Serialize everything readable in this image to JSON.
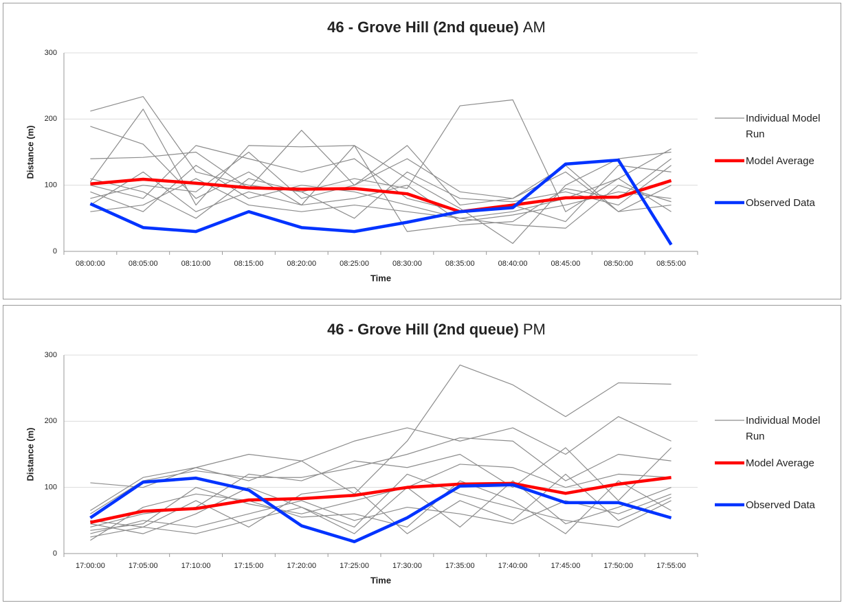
{
  "chart_data": [
    {
      "type": "line",
      "title": [
        "46 - Grove Hill (2nd queue)",
        "AM"
      ],
      "x_label": "Time",
      "y_label": "Distance (m)",
      "categories": [
        "08:00:00",
        "08:05:00",
        "08:10:00",
        "08:15:00",
        "08:20:00",
        "08:25:00",
        "08:30:00",
        "08:35:00",
        "08:40:00",
        "08:45:00",
        "08:50:00",
        "08:55:00"
      ],
      "ylim": [
        0,
        300
      ],
      "yticks": [
        0,
        100,
        200,
        300
      ],
      "grid": true,
      "series": [
        {
          "name": "Individual Model Run",
          "color": "#8c8c8c",
          "runs": [
            [
              212,
              234,
              120,
              100,
              90,
              110,
              95,
              220,
              229,
              60,
              110,
              155
            ],
            [
              189,
              162,
              80,
              120,
              70,
              160,
              110,
              65,
              12,
              100,
              140,
              150
            ],
            [
              140,
              142,
              150,
              95,
              183,
              100,
              160,
              70,
              80,
              120,
              60,
              70
            ],
            [
              105,
              215,
              70,
              160,
              158,
              160,
              30,
              40,
              45,
              95,
              80,
              140
            ],
            [
              100,
              80,
              160,
              140,
              120,
              140,
              80,
              60,
              70,
              45,
              130,
              120
            ],
            [
              90,
              60,
              130,
              80,
              100,
              90,
              70,
              50,
              60,
              80,
              110,
              60
            ],
            [
              80,
              100,
              90,
              150,
              80,
              100,
              140,
              90,
              80,
              130,
              60,
              100
            ],
            [
              70,
              120,
              60,
              90,
              70,
              80,
              100,
              45,
              55,
              70,
              90,
              80
            ],
            [
              60,
              70,
              110,
              70,
              60,
              70,
              60,
              50,
              40,
              35,
              100,
              75
            ],
            [
              110,
              90,
              50,
              110,
              90,
              50,
              120,
              80,
              75,
              90,
              70,
              130
            ]
          ]
        },
        {
          "name": "Model Average",
          "color": "#ff0000",
          "values": [
            102,
            109,
            103,
            96,
            94,
            95,
            87,
            60,
            70,
            81,
            82,
            107
          ]
        },
        {
          "name": "Observed Data",
          "color": "#0033ff",
          "values": [
            72,
            36,
            30,
            60,
            36,
            30,
            44,
            60,
            66,
            132,
            138,
            10
          ]
        }
      ]
    },
    {
      "type": "line",
      "title": [
        "46 - Grove Hill (2nd queue)",
        "PM"
      ],
      "x_label": "Time",
      "y_label": "Distance (m)",
      "categories": [
        "17:00:00",
        "17:05:00",
        "17:10:00",
        "17:15:00",
        "17:20:00",
        "17:25:00",
        "17:30:00",
        "17:35:00",
        "17:40:00",
        "17:45:00",
        "17:50:00",
        "17:55:00"
      ],
      "ylim": [
        0,
        300
      ],
      "yticks": [
        0,
        100,
        200,
        300
      ],
      "grid": true,
      "series": [
        {
          "name": "Individual Model Run",
          "color": "#8c8c8c",
          "runs": [
            [
              107,
              100,
              130,
              110,
              140,
              90,
              170,
              285,
              255,
              207,
              258,
              256
            ],
            [
              65,
              115,
              130,
              150,
              140,
              170,
              190,
              170,
              190,
              150,
              207,
              170
            ],
            [
              60,
              110,
              125,
              115,
              115,
              130,
              150,
              175,
              170,
              110,
              150,
              140
            ],
            [
              40,
              60,
              70,
              120,
              110,
              140,
              130,
              150,
              100,
              160,
              80,
              160
            ],
            [
              35,
              45,
              100,
              75,
              60,
              80,
              100,
              135,
              130,
              100,
              120,
              115
            ],
            [
              30,
              50,
              40,
              60,
              80,
              50,
              70,
              60,
              45,
              80,
              60,
              90
            ],
            [
              25,
              40,
              30,
              50,
              70,
              40,
              120,
              90,
              70,
              50,
              40,
              80
            ],
            [
              20,
              70,
              90,
              80,
              55,
              60,
              40,
              110,
              80,
              30,
              110,
              65
            ],
            [
              45,
              30,
              60,
              100,
              70,
              30,
              100,
              40,
              110,
              45,
              70,
              100
            ],
            [
              50,
              40,
              80,
              40,
              90,
              100,
              30,
              80,
              50,
              120,
              50,
              85
            ]
          ]
        },
        {
          "name": "Model Average",
          "color": "#ff0000",
          "values": [
            47,
            64,
            68,
            81,
            83,
            88,
            100,
            105,
            106,
            91,
            105,
            115
          ]
        },
        {
          "name": "Observed Data",
          "color": "#0033ff",
          "values": [
            54,
            108,
            114,
            96,
            42,
            18,
            54,
            102,
            104,
            77,
            77,
            54
          ]
        }
      ]
    }
  ]
}
